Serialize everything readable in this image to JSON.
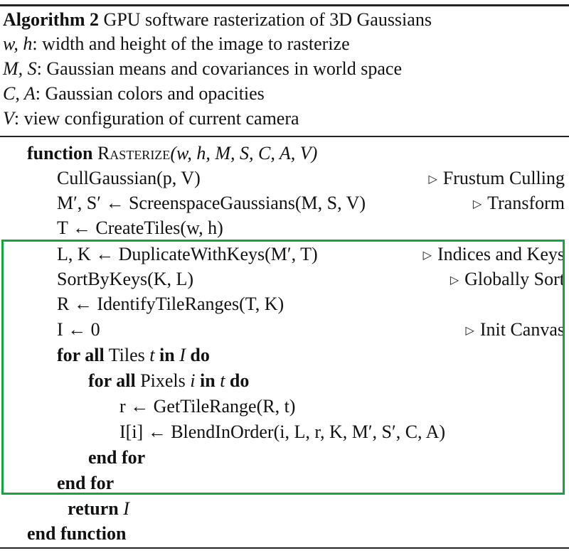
{
  "header": {
    "label": "Algorithm 2",
    "title": "GPU software rasterization of 3D Gaussians",
    "inputs": [
      {
        "vars": "w, h",
        "desc": ": width and height of the image to rasterize"
      },
      {
        "vars": "M, S",
        "desc": ": Gaussian means and covariances in world space"
      },
      {
        "vars": "C, A",
        "desc": ": Gaussian colors and opacities"
      },
      {
        "vars": "V",
        "desc": ": view configuration of current camera"
      }
    ]
  },
  "body": {
    "function_kw": "function",
    "function_name": "Rasterize",
    "function_args": "(w, h, M, S, C, A, V)",
    "cull": {
      "code": "CullGaussian(p, V)",
      "comment": "Frustum Culling"
    },
    "screenspace": {
      "code": "M′, S′ ← ScreenspaceGaussians(M, S, V)",
      "comment": "Transform"
    },
    "tiles": {
      "code": "T ← CreateTiles(w, h)"
    },
    "duplicate": {
      "code": "L, K ← DuplicateWithKeys(M′, T)",
      "comment": "Indices and Keys"
    },
    "sort": {
      "code": "SortByKeys(K, L)",
      "comment": "Globally Sort"
    },
    "ranges": {
      "code": "R ← IdentifyTileRanges(T, K)"
    },
    "init": {
      "code": "I ← 0",
      "comment": "Init Canvas"
    },
    "for_tiles": {
      "kw1": "for all",
      "mid": " Tiles ",
      "var": "t",
      "kw2": " in ",
      "set": "I",
      "kw3": " do"
    },
    "for_pixels": {
      "kw1": "for all",
      "mid": " Pixels ",
      "var": "i",
      "kw2": " in ",
      "set": "t",
      "kw3": " do"
    },
    "get_range": {
      "code": "r ← GetTileRange(R, t)"
    },
    "blend": {
      "code": "I[i] ← BlendInOrder(i, L, r, K, M′, S′, C, A)"
    },
    "end_for_inner": "end for",
    "end_for_outer": "end for",
    "return_kw": "return",
    "return_val": "I",
    "end_function": "end function"
  },
  "highlight": {
    "color": "#14a53f"
  }
}
